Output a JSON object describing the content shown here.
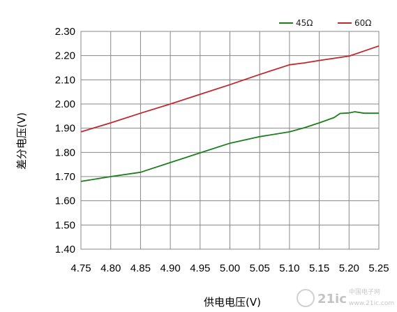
{
  "chart_data": {
    "type": "line",
    "xlabel": "供电电压(V)",
    "ylabel": "差分电压(V)",
    "xlim": [
      4.75,
      5.25
    ],
    "ylim": [
      1.4,
      2.3
    ],
    "x_ticks": [
      "4.75",
      "4.80",
      "4.85",
      "4.90",
      "4.95",
      "5.00",
      "5.05",
      "5.10",
      "5.15",
      "5.20",
      "5.25"
    ],
    "y_ticks": [
      "1.40",
      "1.50",
      "1.60",
      "1.70",
      "1.80",
      "1.90",
      "2.00",
      "2.10",
      "2.20",
      "2.30"
    ],
    "grid": true,
    "legend_position": "top-right",
    "series": [
      {
        "name": "45Ω",
        "color": "#1a7f1a",
        "points": [
          [
            4.75,
            1.68
          ],
          [
            4.8,
            1.7
          ],
          [
            4.85,
            1.718
          ],
          [
            4.9,
            1.758
          ],
          [
            4.95,
            1.798
          ],
          [
            5.0,
            1.838
          ],
          [
            5.05,
            1.865
          ],
          [
            5.1,
            1.885
          ],
          [
            5.125,
            1.902
          ],
          [
            5.15,
            1.922
          ],
          [
            5.175,
            1.944
          ],
          [
            5.185,
            1.961
          ],
          [
            5.2,
            1.963
          ],
          [
            5.21,
            1.968
          ],
          [
            5.225,
            1.962
          ],
          [
            5.25,
            1.962
          ]
        ]
      },
      {
        "name": "60Ω",
        "color": "#c0282d",
        "points": [
          [
            4.75,
            1.885
          ],
          [
            4.8,
            1.922
          ],
          [
            4.85,
            1.962
          ],
          [
            4.9,
            2.0
          ],
          [
            4.95,
            2.04
          ],
          [
            5.0,
            2.08
          ],
          [
            5.05,
            2.122
          ],
          [
            5.1,
            2.162
          ],
          [
            5.125,
            2.17
          ],
          [
            5.15,
            2.18
          ],
          [
            5.2,
            2.198
          ],
          [
            5.25,
            2.24
          ]
        ]
      }
    ]
  },
  "watermark": {
    "text": "21ic",
    "subtext": "中国电子网",
    "url": "www.21ic.com"
  }
}
